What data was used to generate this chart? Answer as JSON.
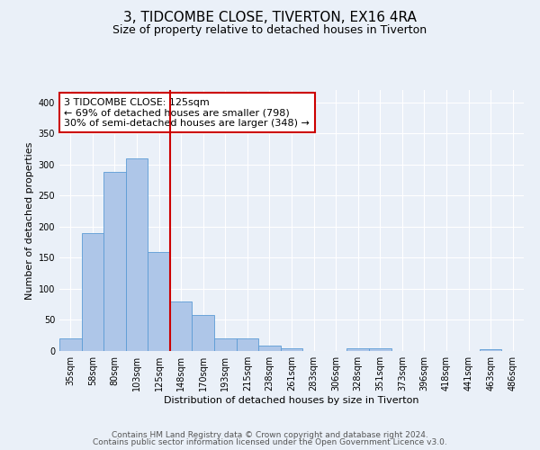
{
  "title": "3, TIDCOMBE CLOSE, TIVERTON, EX16 4RA",
  "subtitle": "Size of property relative to detached houses in Tiverton",
  "xlabel": "Distribution of detached houses by size in Tiverton",
  "ylabel": "Number of detached properties",
  "bin_labels": [
    "35sqm",
    "58sqm",
    "80sqm",
    "103sqm",
    "125sqm",
    "148sqm",
    "170sqm",
    "193sqm",
    "215sqm",
    "238sqm",
    "261sqm",
    "283sqm",
    "306sqm",
    "328sqm",
    "351sqm",
    "373sqm",
    "396sqm",
    "418sqm",
    "441sqm",
    "463sqm",
    "486sqm"
  ],
  "bar_values": [
    21,
    190,
    288,
    310,
    160,
    79,
    58,
    21,
    21,
    8,
    5,
    0,
    0,
    4,
    4,
    0,
    0,
    0,
    0,
    3,
    0
  ],
  "bar_color": "#aec6e8",
  "bar_edge_color": "#5b9bd5",
  "bar_width": 1.0,
  "vline_index": 4,
  "vline_color": "#cc0000",
  "annotation_box_text": "3 TIDCOMBE CLOSE: 125sqm\n← 69% of detached houses are smaller (798)\n30% of semi-detached houses are larger (348) →",
  "box_edge_color": "#cc0000",
  "ylim": [
    0,
    420
  ],
  "yticks": [
    0,
    50,
    100,
    150,
    200,
    250,
    300,
    350,
    400
  ],
  "footer_line1": "Contains HM Land Registry data © Crown copyright and database right 2024.",
  "footer_line2": "Contains public sector information licensed under the Open Government Licence v3.0.",
  "background_color": "#eaf0f8",
  "plot_bg_color": "#eaf0f8",
  "title_fontsize": 11,
  "subtitle_fontsize": 9,
  "axis_label_fontsize": 8,
  "tick_fontsize": 7,
  "annotation_fontsize": 8,
  "footer_fontsize": 6.5
}
